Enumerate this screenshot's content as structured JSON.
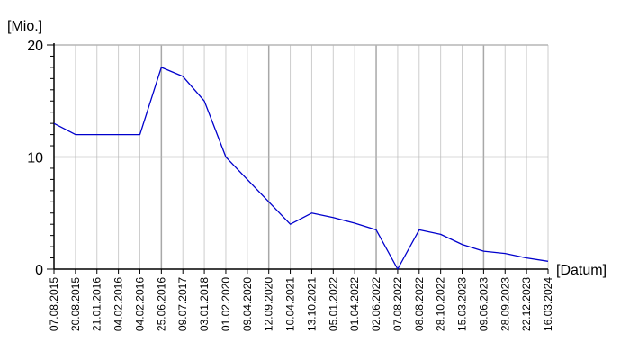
{
  "chart_data": {
    "type": "line",
    "ylabel": "[Mio.]",
    "xlabel": "[Datum]",
    "ylim": [
      0,
      20
    ],
    "yticks": [
      0,
      10,
      20
    ],
    "grid": true,
    "x": [
      "07.08.2015",
      "20.08.2015",
      "21.01.2016",
      "04.02.2016",
      "04.02.2016",
      "25.06.2016",
      "09.07.2017",
      "03.01.2018",
      "01.02.2020",
      "09.04.2020",
      "12.09.2020",
      "10.04.2021",
      "13.10.2021",
      "05.01.2022",
      "01.04.2022",
      "02.06.2022",
      "07.08.2022",
      "08.08.2022",
      "28.10.2022",
      "15.03.2023",
      "09.06.2023",
      "28.09.2023",
      "22.12.2023",
      "16.03.2024"
    ],
    "series": [
      {
        "color": "#0000cc",
        "values": [
          13,
          12,
          12,
          12,
          12,
          18,
          17.2,
          15,
          10,
          8,
          6,
          4,
          5,
          4.6,
          4.1,
          3.5,
          0,
          3.5,
          3.1,
          2.2,
          1.6,
          1.4,
          1,
          0.7
        ]
      }
    ]
  }
}
